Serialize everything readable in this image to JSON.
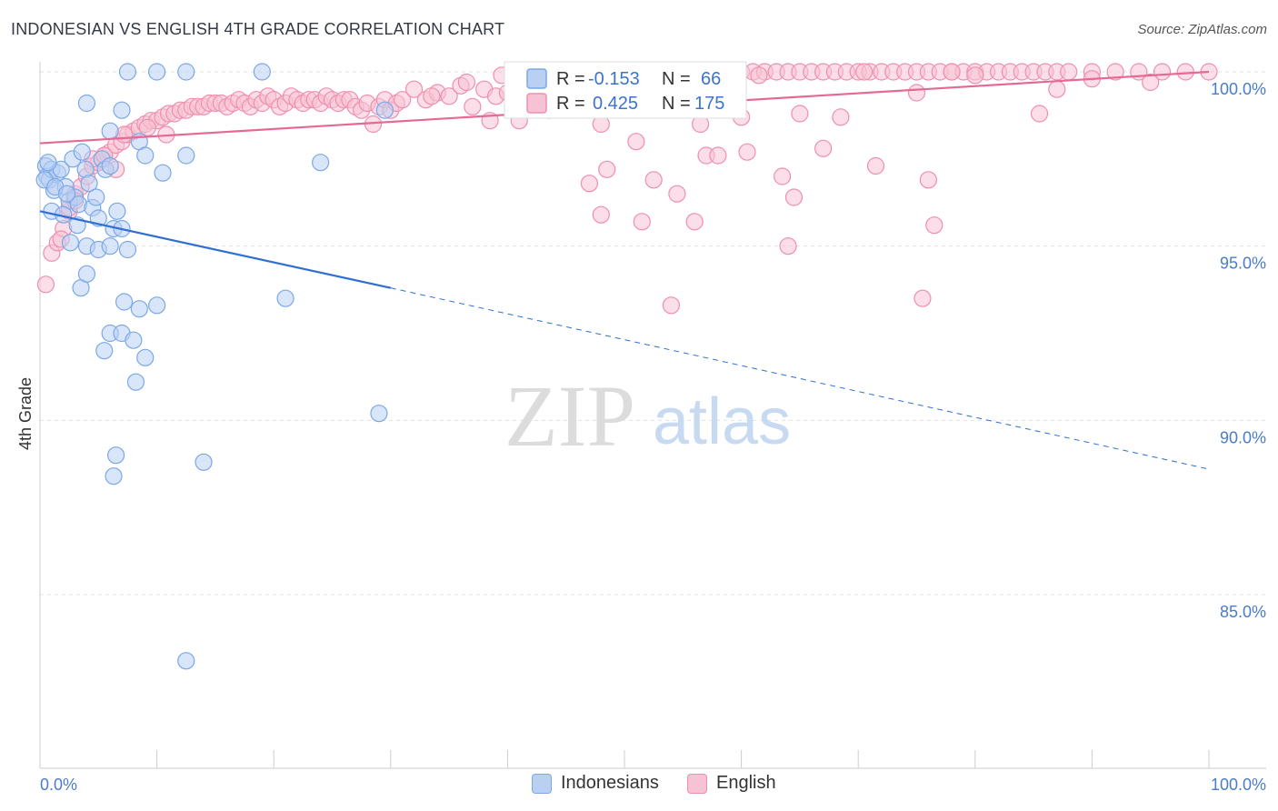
{
  "title": "INDONESIAN VS ENGLISH 4TH GRADE CORRELATION CHART",
  "source": "Source: ZipAtlas.com",
  "watermark": {
    "zip": "ZIP",
    "atlas": "atlas"
  },
  "colors": {
    "blue": "#7aa8e8",
    "blue_fill": "#b9d0f3",
    "blue_line": "#2f6fd4",
    "pink": "#ee8fae",
    "pink_fill": "#f7c3d4",
    "pink_line": "#e46a93",
    "tick_text": "#4a7cc9"
  },
  "legend": {
    "rows": [
      {
        "r_label": "R = ",
        "r_value": "-0.153",
        "n_label": "N = ",
        "n_value": "66"
      },
      {
        "r_label": "R = ",
        "r_value": "0.425",
        "n_label": "N = ",
        "n_value": "175"
      }
    ]
  },
  "bottom_legend": {
    "indonesians": "Indonesians",
    "english": "English"
  },
  "chart_data": {
    "type": "scatter",
    "title": "INDONESIAN VS ENGLISH 4TH GRADE CORRELATION CHART",
    "xlabel": "",
    "ylabel": "4th Grade",
    "xlim": [
      0,
      100
    ],
    "ylim": [
      80.5,
      100.8
    ],
    "x_tick_labels": [
      "0.0%",
      "100.0%"
    ],
    "y_ticks": [
      85,
      90,
      95,
      100
    ],
    "y_tick_labels": [
      "85.0%",
      "90.0%",
      "95.0%",
      "100.0%"
    ],
    "grid": true,
    "legend_position": "top-center",
    "series": [
      {
        "name": "Indonesians",
        "r": -0.153,
        "n": 66,
        "trend": {
          "x0": 0,
          "y0": 96.0,
          "x1_solid": 30,
          "y1_solid": 93.8,
          "x1": 100,
          "y1": 88.6
        },
        "points": [
          [
            0.5,
            97.3
          ],
          [
            0.6,
            97.0
          ],
          [
            0.8,
            96.9
          ],
          [
            1.0,
            97.2
          ],
          [
            1.2,
            96.6
          ],
          [
            1.5,
            97.1
          ],
          [
            1.8,
            97.2
          ],
          [
            2.2,
            96.7
          ],
          [
            2.5,
            96.3
          ],
          [
            2.8,
            97.5
          ],
          [
            3.0,
            96.4
          ],
          [
            3.3,
            96.2
          ],
          [
            3.6,
            97.7
          ],
          [
            3.9,
            97.2
          ],
          [
            4.2,
            96.8
          ],
          [
            4.5,
            96.1
          ],
          [
            5.0,
            95.8
          ],
          [
            5.3,
            97.5
          ],
          [
            5.6,
            97.2
          ],
          [
            6.0,
            97.3
          ],
          [
            6.3,
            95.5
          ],
          [
            6.6,
            96.0
          ],
          [
            7.0,
            95.5
          ],
          [
            1.0,
            96.0
          ],
          [
            2.0,
            95.9
          ],
          [
            3.2,
            95.6
          ],
          [
            2.6,
            95.1
          ],
          [
            4.0,
            95.0
          ],
          [
            5.0,
            94.9
          ],
          [
            6.0,
            95.0
          ],
          [
            7.5,
            94.9
          ],
          [
            3.5,
            93.8
          ],
          [
            4.0,
            94.2
          ],
          [
            7.2,
            93.4
          ],
          [
            8.5,
            93.2
          ],
          [
            10.0,
            93.3
          ],
          [
            5.5,
            92.0
          ],
          [
            6.0,
            92.5
          ],
          [
            7.0,
            92.5
          ],
          [
            8.0,
            92.3
          ],
          [
            9.0,
            91.8
          ],
          [
            8.2,
            91.1
          ],
          [
            4.0,
            99.1
          ],
          [
            6.0,
            98.3
          ],
          [
            7.0,
            98.9
          ],
          [
            8.5,
            98.0
          ],
          [
            9.0,
            97.6
          ],
          [
            10.5,
            97.1
          ],
          [
            12.5,
            97.6
          ],
          [
            21.0,
            93.5
          ],
          [
            24.0,
            97.4
          ],
          [
            29.0,
            90.2
          ],
          [
            29.5,
            98.9
          ],
          [
            7.5,
            100.0
          ],
          [
            10.0,
            100.0
          ],
          [
            12.5,
            100.0
          ],
          [
            19.0,
            100.0
          ],
          [
            6.5,
            89.0
          ],
          [
            6.3,
            88.4
          ],
          [
            14.0,
            88.8
          ],
          [
            12.5,
            83.1
          ],
          [
            0.4,
            96.9
          ],
          [
            0.7,
            97.4
          ],
          [
            1.3,
            96.7
          ],
          [
            2.3,
            96.5
          ],
          [
            4.8,
            96.4
          ]
        ]
      },
      {
        "name": "English",
        "r": 0.425,
        "n": 175,
        "trend": {
          "x0": 0,
          "y0": 97.95,
          "x1": 100,
          "y1": 100.0
        },
        "points": [
          [
            0.5,
            93.9
          ],
          [
            1.0,
            94.8
          ],
          [
            1.5,
            95.1
          ],
          [
            2.0,
            95.5
          ],
          [
            2.5,
            96.0
          ],
          [
            3.0,
            96.5
          ],
          [
            3.5,
            96.7
          ],
          [
            4.0,
            97.0
          ],
          [
            4.5,
            97.3
          ],
          [
            5.0,
            97.4
          ],
          [
            5.5,
            97.6
          ],
          [
            6.0,
            97.7
          ],
          [
            6.5,
            97.9
          ],
          [
            7.0,
            98.0
          ],
          [
            7.5,
            98.2
          ],
          [
            8.0,
            98.3
          ],
          [
            8.5,
            98.4
          ],
          [
            9.0,
            98.5
          ],
          [
            9.5,
            98.6
          ],
          [
            10.0,
            98.6
          ],
          [
            10.5,
            98.7
          ],
          [
            11.0,
            98.8
          ],
          [
            11.5,
            98.8
          ],
          [
            12.0,
            98.9
          ],
          [
            12.5,
            98.9
          ],
          [
            13.0,
            99.0
          ],
          [
            13.5,
            99.0
          ],
          [
            14.0,
            99.0
          ],
          [
            14.5,
            99.1
          ],
          [
            15.0,
            99.1
          ],
          [
            15.5,
            99.1
          ],
          [
            16.0,
            99.0
          ],
          [
            16.5,
            99.1
          ],
          [
            17.0,
            99.2
          ],
          [
            17.5,
            99.1
          ],
          [
            18.0,
            99.0
          ],
          [
            18.5,
            99.2
          ],
          [
            19.0,
            99.1
          ],
          [
            19.5,
            99.3
          ],
          [
            20.0,
            99.2
          ],
          [
            20.5,
            99.0
          ],
          [
            21.0,
            99.1
          ],
          [
            21.5,
            99.3
          ],
          [
            22.0,
            99.2
          ],
          [
            22.5,
            99.1
          ],
          [
            23.0,
            99.2
          ],
          [
            23.5,
            99.2
          ],
          [
            24.0,
            99.1
          ],
          [
            24.5,
            99.3
          ],
          [
            25.0,
            99.2
          ],
          [
            25.5,
            99.1
          ],
          [
            26.0,
            99.2
          ],
          [
            26.5,
            99.2
          ],
          [
            27.0,
            99.0
          ],
          [
            27.5,
            98.9
          ],
          [
            28.0,
            99.1
          ],
          [
            28.5,
            98.5
          ],
          [
            29.0,
            99.0
          ],
          [
            29.5,
            99.2
          ],
          [
            30.0,
            98.9
          ],
          [
            30.5,
            99.1
          ],
          [
            31.0,
            99.2
          ],
          [
            32.0,
            99.5
          ],
          [
            33.0,
            99.2
          ],
          [
            34.0,
            99.4
          ],
          [
            35.0,
            99.3
          ],
          [
            36.0,
            99.6
          ],
          [
            37.0,
            99.0
          ],
          [
            38.0,
            99.5
          ],
          [
            39.0,
            99.3
          ],
          [
            40.0,
            99.4
          ],
          [
            41.0,
            98.6
          ],
          [
            42.0,
            99.5
          ],
          [
            43.0,
            99.7
          ],
          [
            44.0,
            99.6
          ],
          [
            45.0,
            99.8
          ],
          [
            46.0,
            99.6
          ],
          [
            47.0,
            99.8
          ],
          [
            48.0,
            99.7
          ],
          [
            49.0,
            99.9
          ],
          [
            50.0,
            99.7
          ],
          [
            51.0,
            99.9
          ],
          [
            52.0,
            99.8
          ],
          [
            53.0,
            100.0
          ],
          [
            54.0,
            99.9
          ],
          [
            55.0,
            100.0
          ],
          [
            56.0,
            99.9
          ],
          [
            57.0,
            100.0
          ],
          [
            58.0,
            100.0
          ],
          [
            59.0,
            99.9
          ],
          [
            60.0,
            100.0
          ],
          [
            61.0,
            100.0
          ],
          [
            62.0,
            100.0
          ],
          [
            63.0,
            100.0
          ],
          [
            64.0,
            100.0
          ],
          [
            65.0,
            100.0
          ],
          [
            66.0,
            100.0
          ],
          [
            67.0,
            100.0
          ],
          [
            68.0,
            100.0
          ],
          [
            69.0,
            100.0
          ],
          [
            70.0,
            100.0
          ],
          [
            71.0,
            100.0
          ],
          [
            72.0,
            100.0
          ],
          [
            73.0,
            100.0
          ],
          [
            74.0,
            100.0
          ],
          [
            75.0,
            100.0
          ],
          [
            76.0,
            100.0
          ],
          [
            77.0,
            100.0
          ],
          [
            78.0,
            100.0
          ],
          [
            79.0,
            100.0
          ],
          [
            80.0,
            100.0
          ],
          [
            81.0,
            100.0
          ],
          [
            82.0,
            100.0
          ],
          [
            83.0,
            100.0
          ],
          [
            84.0,
            100.0
          ],
          [
            85.0,
            100.0
          ],
          [
            86.0,
            100.0
          ],
          [
            87.0,
            100.0
          ],
          [
            88.0,
            100.0
          ],
          [
            90.0,
            100.0
          ],
          [
            92.0,
            100.0
          ],
          [
            94.0,
            100.0
          ],
          [
            96.0,
            100.0
          ],
          [
            98.0,
            100.0
          ],
          [
            100.0,
            100.0
          ],
          [
            38.5,
            98.6
          ],
          [
            43.5,
            98.9
          ],
          [
            48.0,
            98.5
          ],
          [
            51.0,
            98.0
          ],
          [
            56.5,
            98.5
          ],
          [
            60.0,
            98.7
          ],
          [
            65.0,
            98.8
          ],
          [
            68.5,
            98.7
          ],
          [
            75.0,
            99.4
          ],
          [
            80.0,
            99.9
          ],
          [
            85.5,
            98.8
          ],
          [
            87.0,
            99.5
          ],
          [
            90.0,
            99.8
          ],
          [
            95.0,
            99.7
          ],
          [
            48.5,
            97.2
          ],
          [
            57.0,
            97.6
          ],
          [
            58.0,
            97.6
          ],
          [
            60.5,
            97.7
          ],
          [
            67.0,
            97.8
          ],
          [
            71.5,
            97.3
          ],
          [
            47.0,
            96.8
          ],
          [
            52.5,
            96.9
          ],
          [
            54.5,
            96.5
          ],
          [
            63.5,
            97.0
          ],
          [
            64.5,
            96.4
          ],
          [
            76.0,
            96.9
          ],
          [
            48.0,
            95.9
          ],
          [
            51.5,
            95.7
          ],
          [
            56.0,
            95.7
          ],
          [
            64.0,
            95.0
          ],
          [
            76.5,
            95.6
          ],
          [
            54.0,
            93.3
          ],
          [
            75.5,
            93.5
          ],
          [
            2.5,
            96.1
          ],
          [
            3.0,
            96.3
          ],
          [
            1.8,
            95.2
          ],
          [
            4.5,
            97.5
          ],
          [
            5.5,
            97.6
          ],
          [
            6.5,
            97.2
          ],
          [
            7.2,
            98.2
          ],
          [
            9.2,
            98.4
          ],
          [
            10.8,
            98.2
          ],
          [
            33.5,
            99.3
          ],
          [
            36.5,
            99.7
          ],
          [
            39.5,
            99.9
          ],
          [
            44.5,
            99.9
          ],
          [
            52.0,
            100.0
          ],
          [
            61.5,
            99.9
          ],
          [
            70.5,
            100.0
          ],
          [
            78.0,
            100.0
          ]
        ]
      }
    ]
  }
}
